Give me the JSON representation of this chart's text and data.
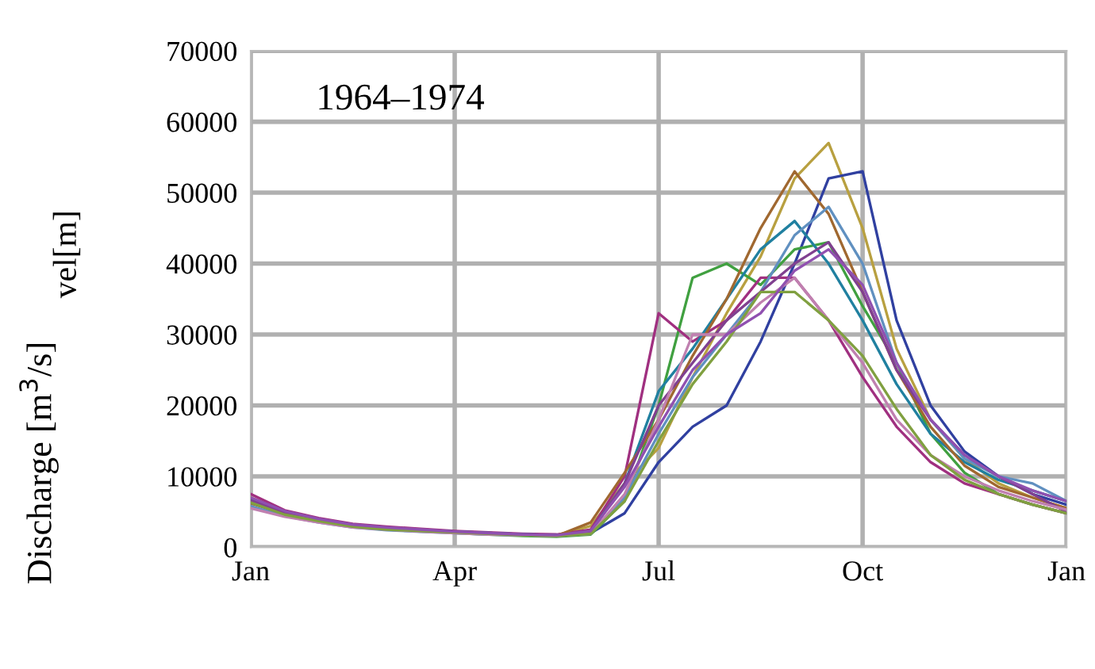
{
  "chart_data": {
    "type": "line",
    "title": "1964–1974",
    "ylabel": "Discharge [m$^{3}$/s]",
    "annotations": [
      "vel[m]"
    ],
    "categories": [
      "Jan",
      null,
      null,
      null,
      null,
      null,
      "Apr",
      null,
      null,
      null,
      null,
      null,
      "Jul",
      null,
      null,
      null,
      null,
      null,
      "Oct",
      null,
      null,
      null,
      null,
      null,
      "Jan"
    ],
    "ylim": [
      0,
      70000
    ],
    "yticks": [
      0,
      10000,
      20000,
      30000,
      40000,
      50000,
      60000,
      70000
    ],
    "grid": true,
    "marker": "none",
    "line_style": "solid",
    "series": [
      {
        "color": "#b8a040",
        "values": [
          7000,
          5000,
          4000,
          3200,
          2800,
          2500,
          2200,
          2000,
          1800,
          1700,
          3000,
          9000,
          14000,
          24000,
          33000,
          41000,
          52000,
          57000,
          45000,
          28000,
          18000,
          12500,
          9000,
          7000,
          5500
        ]
      },
      {
        "color": "#3040a0",
        "values": [
          6500,
          4800,
          3800,
          3000,
          2600,
          2300,
          2100,
          1900,
          1700,
          1600,
          2000,
          4800,
          12000,
          17000,
          20000,
          29000,
          40000,
          52000,
          53000,
          32000,
          20000,
          13500,
          10000,
          7500,
          6000
        ]
      },
      {
        "color": "#40a040",
        "values": [
          null,
          null,
          null,
          null,
          null,
          null,
          2000,
          1800,
          1600,
          1500,
          1800,
          6500,
          20000,
          38000,
          40000,
          37000,
          42000,
          43000,
          34000,
          26000,
          16000,
          10500,
          7500,
          6000,
          4800
        ]
      },
      {
        "color": "#a03080",
        "values": [
          7500,
          5200,
          4100,
          3300,
          2900,
          2600,
          2300,
          2100,
          1900,
          1800,
          2500,
          10000,
          33000,
          29000,
          32000,
          38000,
          38000,
          32000,
          24000,
          17000,
          12000,
          9000,
          7500,
          6000,
          4800
        ]
      },
      {
        "color": "#2080a0",
        "values": [
          6800,
          5000,
          3900,
          3100,
          2700,
          2400,
          2200,
          2000,
          1800,
          1700,
          2200,
          9000,
          22000,
          28000,
          35000,
          42000,
          46000,
          40000,
          32000,
          23000,
          16000,
          12000,
          9500,
          8000,
          6500
        ]
      },
      {
        "color": "#a06830",
        "values": [
          6200,
          4700,
          3700,
          3000,
          2600,
          2300,
          2100,
          1900,
          1700,
          1600,
          3500,
          10500,
          18000,
          27000,
          35000,
          45000,
          53000,
          47000,
          36000,
          25000,
          17000,
          11500,
          8500,
          7000,
          5500
        ]
      },
      {
        "color": "#6090c0",
        "values": [
          5800,
          4400,
          3500,
          2800,
          2400,
          2200,
          2000,
          1800,
          1700,
          1600,
          2000,
          7000,
          16000,
          24000,
          30000,
          36000,
          44000,
          48000,
          40000,
          26000,
          18000,
          12500,
          10000,
          9000,
          6500
        ]
      },
      {
        "color": "#804090",
        "values": [
          6600,
          4900,
          3800,
          3100,
          2700,
          2400,
          2200,
          2000,
          1800,
          1700,
          2100,
          9000,
          20000,
          26000,
          32000,
          36000,
          40000,
          43000,
          36000,
          25000,
          18000,
          13000,
          10000,
          7500,
          5000
        ]
      },
      {
        "color": "#c080b0",
        "values": [
          5500,
          4300,
          3500,
          2800,
          2500,
          2200,
          2000,
          1800,
          1700,
          1600,
          1900,
          7500,
          18000,
          30000,
          30000,
          34500,
          38000,
          32000,
          26000,
          18000,
          13000,
          10000,
          8000,
          6500,
          5300
        ]
      },
      {
        "color": "#80a040",
        "values": [
          6300,
          4600,
          3700,
          2900,
          2500,
          2300,
          2100,
          1900,
          1700,
          1600,
          1900,
          6500,
          15000,
          23000,
          29000,
          36000,
          36000,
          32000,
          27000,
          19500,
          13000,
          9500,
          7500,
          6000,
          4800
        ]
      },
      {
        "color": "#9050b0",
        "values": [
          7000,
          5100,
          4000,
          3200,
          2800,
          2500,
          2200,
          2000,
          1800,
          1700,
          2300,
          8500,
          17000,
          25000,
          30000,
          33000,
          39000,
          42000,
          37000,
          26000,
          18000,
          13000,
          10000,
          8000,
          6500
        ]
      }
    ]
  }
}
